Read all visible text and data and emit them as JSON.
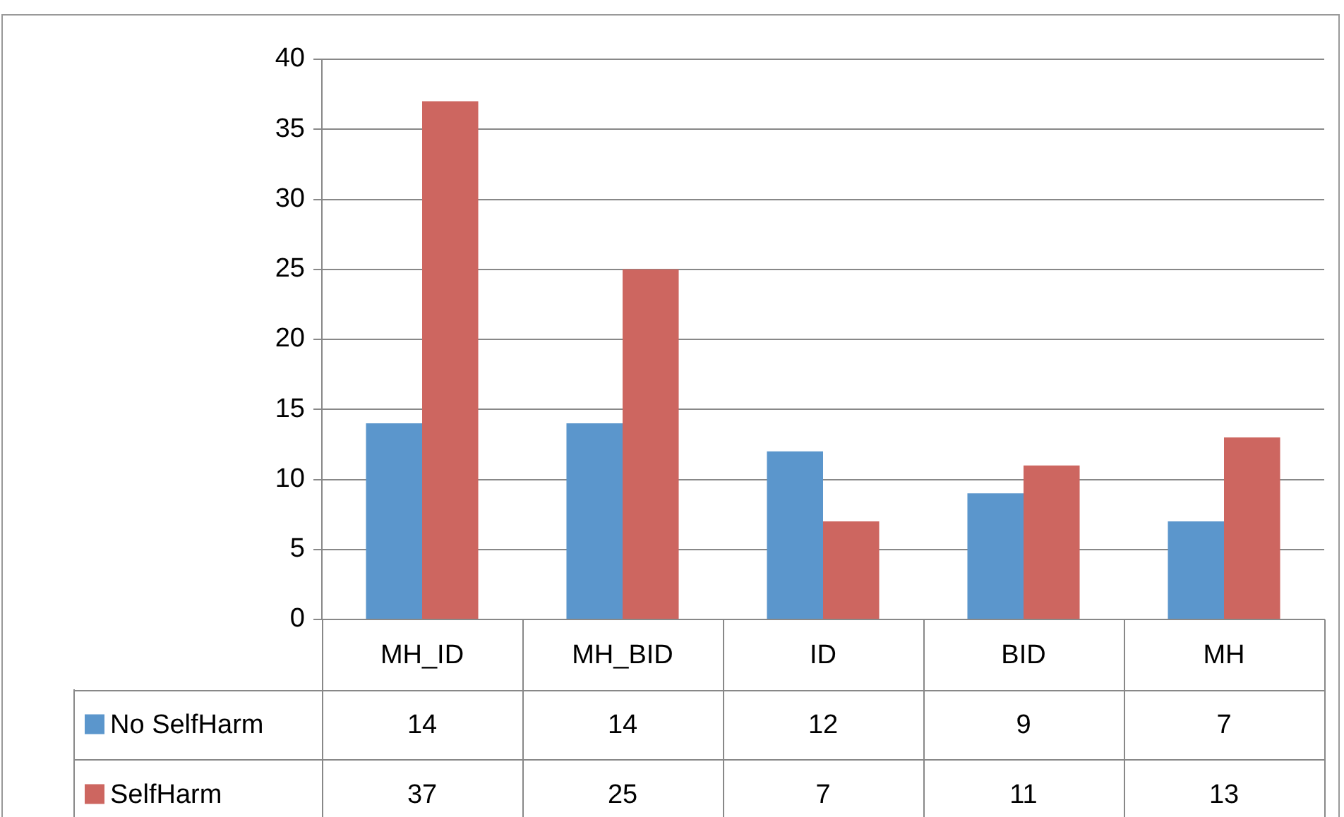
{
  "chart_data": {
    "type": "bar",
    "categories": [
      "MH_ID",
      "MH_BID",
      "ID",
      "BID",
      "MH"
    ],
    "series": [
      {
        "name": "No SelfHarm",
        "color": "#5b96cc",
        "values": [
          14,
          14,
          12,
          9,
          7
        ]
      },
      {
        "name": "SelfHarm",
        "color": "#cd6660",
        "values": [
          37,
          25,
          7,
          11,
          13
        ]
      }
    ],
    "ylim": [
      0,
      40
    ],
    "yticks": [
      0,
      5,
      10,
      15,
      20,
      25,
      30,
      35,
      40
    ],
    "grid": "y",
    "legend": "bottom left",
    "data_labels": true
  }
}
